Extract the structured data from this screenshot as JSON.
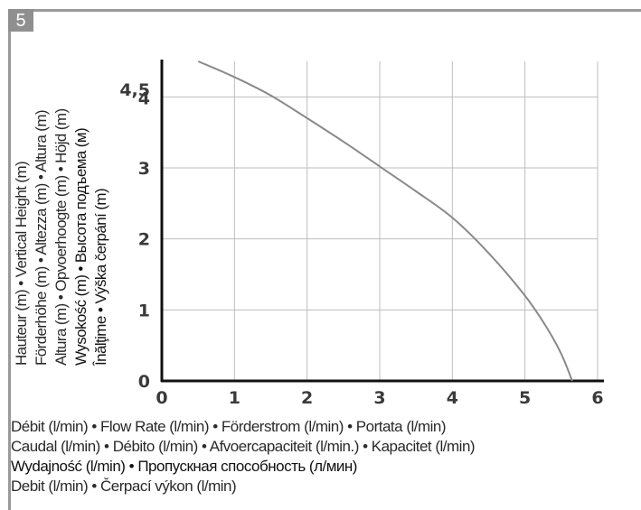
{
  "figure_number": "5",
  "y_label_lines": [
    "Hauteur (m) • Vertical Height (m)",
    "Förderhöhe (m) • Altezza (m) • Altura (m)",
    "Altura (m) • Opvoerhoogte (m) • Höjd (m)",
    "Wysokość (m) • Высота подъема (м)",
    "Înălţime • Výška čerpání (m)"
  ],
  "x_label_lines": [
    "Débit (l/min) • Flow Rate (l/min) • Förderstrom (l/min) • Portata (l/min)",
    "Caudal (l/min) • Débito (l/min) • Afvoercapaciteit (l/min.) • Kapacitet (l/min)",
    "Wydajność (l/min) • Пропускная способность (л/мин)",
    "Debit (l/min) • Čerpací výkon (l/min)"
  ],
  "chart_data": {
    "type": "line",
    "x_ticks": [
      "0",
      "1",
      "2",
      "3",
      "4",
      "5",
      "6"
    ],
    "y_ticks": [
      "0",
      "1",
      "2",
      "3",
      "4",
      "4,5"
    ],
    "xlim": [
      0,
      6
    ],
    "ylim": [
      0,
      4.5
    ],
    "grid": true,
    "series": [
      {
        "x": [
          0.5,
          0.8,
          1.1,
          1.5,
          2.0,
          2.5,
          3.0,
          3.5,
          4.0,
          4.5,
          5.0,
          5.3,
          5.5,
          5.65
        ],
        "y": [
          4.5,
          4.37,
          4.23,
          4.02,
          3.7,
          3.37,
          3.02,
          2.67,
          2.3,
          1.8,
          1.2,
          0.75,
          0.38,
          0.0
        ]
      }
    ],
    "colors": {
      "curve": "#8a8a8a",
      "axes": "#111111",
      "grid": "#bdbdbd"
    }
  }
}
